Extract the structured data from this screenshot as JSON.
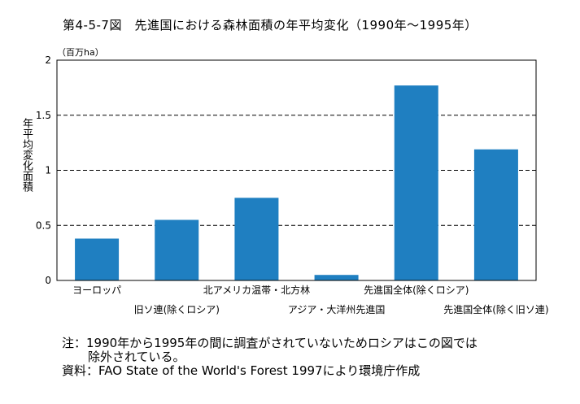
{
  "chart_data": {
    "type": "bar",
    "title": "第4-5-7図　先進国における森林面積の年平均変化（1990年～1995年）",
    "unit": "（百万ha）",
    "ylabel": "年平均変化面積",
    "ylim": [
      0,
      2
    ],
    "yticks": [
      "0",
      "0.5",
      "1",
      "1.5",
      "2"
    ],
    "grid": "dashed-horizontal",
    "categories": [
      "ヨーロッパ",
      "旧ソ連(除くロシア)",
      "北アメリカ温帯・北方林",
      "アジア・大洋州先進国",
      "先進国全体(除くロシア)",
      "先進国全体(除く旧ソ連)"
    ],
    "values": [
      0.38,
      0.55,
      0.75,
      0.05,
      1.77,
      1.19
    ],
    "bar_color": "#1f7fc1"
  },
  "notes": {
    "note_line1": "注：1990年から1995年の間に調査がされていないためロシアはこの図では",
    "note_line2": "除外されている。",
    "source": "資料：FAO State of the World's Forest 1997により環境庁作成"
  }
}
